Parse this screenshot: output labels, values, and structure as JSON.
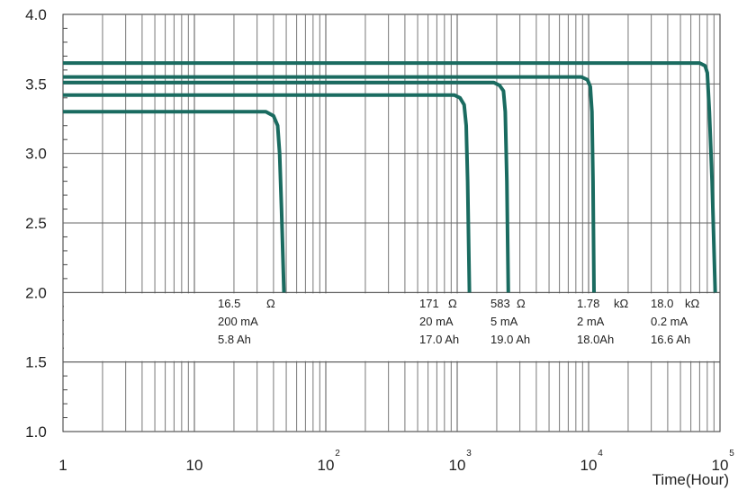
{
  "chart_data": {
    "type": "line",
    "title": "",
    "xlabel": "Time(Hour)",
    "ylabel": "",
    "x_scale": "log",
    "xlim": [
      1,
      100000
    ],
    "ylim": [
      1.0,
      4.0
    ],
    "grid": true,
    "x_ticks": [
      {
        "base": "1",
        "exp": ""
      },
      {
        "base": "10",
        "exp": ""
      },
      {
        "base": "10",
        "exp": "2"
      },
      {
        "base": "10",
        "exp": "3"
      },
      {
        "base": "10",
        "exp": "4"
      },
      {
        "base": "10",
        "exp": "5"
      }
    ],
    "y_ticks": [
      "1.0",
      "1.5",
      "2.0",
      "2.5",
      "3.0",
      "3.5",
      "4.0"
    ],
    "line_color": "#1a6b60",
    "series": [
      {
        "load": "16.5",
        "load_unit": "Ω",
        "current": "200 mA",
        "capacity": "5.8 Ah",
        "points": [
          [
            1,
            3.3
          ],
          [
            35,
            3.3
          ],
          [
            40,
            3.27
          ],
          [
            43,
            3.2
          ],
          [
            44.5,
            3.0
          ],
          [
            46,
            2.6
          ],
          [
            48,
            2.0
          ]
        ]
      },
      {
        "load": "171",
        "load_unit": "Ω",
        "current": "20 mA",
        "capacity": "17.0 Ah",
        "points": [
          [
            1,
            3.42
          ],
          [
            950,
            3.42
          ],
          [
            1050,
            3.4
          ],
          [
            1130,
            3.35
          ],
          [
            1170,
            3.2
          ],
          [
            1200,
            2.8
          ],
          [
            1240,
            2.0
          ]
        ]
      },
      {
        "load": "583",
        "load_unit": "Ω",
        "current": "5  mA",
        "capacity": "19.0 Ah",
        "points": [
          [
            1,
            3.51
          ],
          [
            1900,
            3.51
          ],
          [
            2100,
            3.49
          ],
          [
            2250,
            3.45
          ],
          [
            2320,
            3.3
          ],
          [
            2390,
            2.8
          ],
          [
            2450,
            2.0
          ]
        ]
      },
      {
        "load": "1.78",
        "load_unit": "kΩ",
        "current": "2 mA",
        "capacity": "18.0Ah",
        "points": [
          [
            1,
            3.55
          ],
          [
            8800,
            3.55
          ],
          [
            9800,
            3.53
          ],
          [
            10300,
            3.48
          ],
          [
            10600,
            3.3
          ],
          [
            10800,
            2.8
          ],
          [
            11000,
            2.0
          ]
        ]
      },
      {
        "load": "18.0",
        "load_unit": "kΩ",
        "current": "0.2 mA",
        "capacity": "16.6 Ah",
        "points": [
          [
            1,
            3.65
          ],
          [
            70000,
            3.65
          ],
          [
            77000,
            3.63
          ],
          [
            80000,
            3.58
          ],
          [
            83000,
            3.3
          ],
          [
            87000,
            2.8
          ],
          [
            92000,
            2.0
          ]
        ]
      }
    ]
  }
}
